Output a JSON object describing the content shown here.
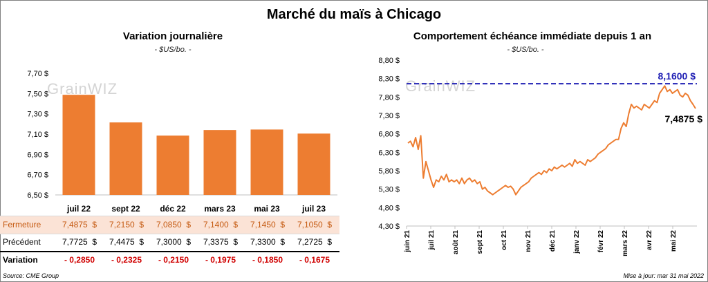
{
  "title": "Marché du maïs à Chicago",
  "left": {
    "title": "Variation journalière",
    "unit": "- $US/bo. -",
    "watermark": "GrainWIZ"
  },
  "right": {
    "title": "Comportement échéance immédiate depuis 1 an",
    "unit": "- $US/bo. -",
    "watermark": "GrainWIZ",
    "max_label": "8,1600 $",
    "last_label": "7,4875 $"
  },
  "table": {
    "rows": [
      {
        "label": "Fermeture",
        "values": [
          "7,4875  $",
          "7,2150  $",
          "7,0850  $",
          "7,1400  $",
          "7,1450  $",
          "7,1050  $"
        ]
      },
      {
        "label": "Précédent",
        "values": [
          "7,7725  $",
          "7,4475  $",
          "7,3000  $",
          "7,3375  $",
          "7,3300  $",
          "7,2725  $"
        ]
      },
      {
        "label": "Variation",
        "values": [
          "- 0,2850",
          "- 0,2325",
          "- 0,2150",
          "- 0,1975",
          "- 0,1850",
          "- 0,1675"
        ]
      }
    ]
  },
  "source": "Source: CME Group",
  "updated": "Mise à jour: mar 31 mai 2022",
  "colors": {
    "bar": "#ed7d31",
    "line": "#ed7d31",
    "max_line": "#1f1fb4",
    "variation_text": "#d00000",
    "closing_row_bg": "#fbe3d6"
  },
  "chart_data": [
    {
      "type": "bar",
      "categories": [
        "juil 22",
        "sept 22",
        "déc 22",
        "mars 23",
        "mai 23",
        "juil 23"
      ],
      "values": [
        7.4875,
        7.215,
        7.085,
        7.14,
        7.145,
        7.105
      ],
      "ylim": [
        6.5,
        7.7
      ],
      "yticks": [
        "6,50 $",
        "6,70 $",
        "6,90 $",
        "7,10 $",
        "7,30 $",
        "7,50 $",
        "7,70 $"
      ],
      "title": "Variation journalière",
      "ylabel": "",
      "xlabel": ""
    },
    {
      "type": "line",
      "x_labels": [
        "juin 21",
        "juil 21",
        "août 21",
        "sept 21",
        "oct 21",
        "nov 21",
        "déc 21",
        "janv 22",
        "févr 22",
        "mars 22",
        "avr 22",
        "mai 22"
      ],
      "ylim": [
        4.3,
        8.8
      ],
      "yticks": [
        "4,30 $",
        "4,80 $",
        "5,30 $",
        "5,80 $",
        "6,30 $",
        "6,80 $",
        "7,30 $",
        "7,80 $",
        "8,30 $",
        "8,80 $"
      ],
      "reference_line": 8.16,
      "series": [
        {
          "values": [
            6.55,
            6.6,
            6.45,
            6.7,
            6.38,
            6.75,
            5.6,
            6.05,
            5.8,
            5.55,
            5.35,
            5.55,
            5.5,
            5.65,
            5.55,
            5.7,
            5.5,
            5.55,
            5.5,
            5.55,
            5.45,
            5.6,
            5.45,
            5.55,
            5.6,
            5.5,
            5.55,
            5.45,
            5.5,
            5.3,
            5.35,
            5.25,
            5.2,
            5.15,
            5.2,
            5.25,
            5.3,
            5.35,
            5.4,
            5.35,
            5.38,
            5.3,
            5.15,
            5.25,
            5.35,
            5.4,
            5.45,
            5.5,
            5.6,
            5.65,
            5.7,
            5.75,
            5.7,
            5.8,
            5.75,
            5.85,
            5.8,
            5.9,
            5.85,
            5.9,
            5.95,
            5.9,
            5.95,
            6.0,
            5.92,
            6.1,
            6.0,
            6.05,
            6.0,
            5.95,
            6.1,
            6.05,
            6.1,
            6.15,
            6.25,
            6.3,
            6.35,
            6.4,
            6.5,
            6.55,
            6.6,
            6.65,
            6.65,
            6.95,
            7.1,
            7.0,
            7.35,
            7.6,
            7.5,
            7.55,
            7.5,
            7.45,
            7.6,
            7.55,
            7.5,
            7.6,
            7.7,
            7.65,
            7.9,
            8.0,
            8.1,
            7.95,
            8.0,
            7.9,
            7.95,
            8.0,
            7.85,
            7.8,
            7.9,
            7.85,
            7.7,
            7.6,
            7.4875
          ]
        }
      ],
      "annotations": [
        "8,1600 $",
        "7,4875 $"
      ],
      "title": "Comportement échéance immédiate depuis 1 an",
      "ylabel": "",
      "xlabel": ""
    }
  ]
}
